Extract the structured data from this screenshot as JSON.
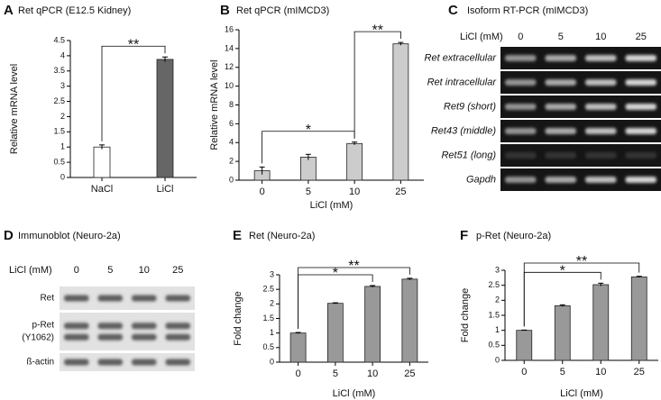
{
  "chart_data": [
    {
      "type": "bar",
      "panel": "A",
      "title": "Ret qPCR (E12.5 Kidney)",
      "y_label": "Relative mRNA level",
      "categories": [
        "NaCl",
        "LiCl"
      ],
      "values": [
        1.0,
        3.88
      ],
      "errors": [
        0.07,
        0.08
      ],
      "colors": [
        "#ffffff",
        "#666666"
      ],
      "ylim": [
        0,
        4.5
      ],
      "yticks": [
        0,
        0.5,
        1,
        1.5,
        2,
        2.5,
        3,
        3.5,
        4,
        4.5
      ],
      "annotations": [
        {
          "text": "**",
          "between": [
            "NaCl",
            "LiCl"
          ]
        }
      ]
    },
    {
      "type": "bar",
      "panel": "B",
      "title": "Ret qPCR (mIMCD3)",
      "y_label": "Relative mRNA level",
      "x_label": "LiCl (mM)",
      "categories": [
        "0",
        "5",
        "10",
        "25"
      ],
      "values": [
        1.0,
        2.45,
        3.9,
        14.5
      ],
      "errors": [
        0.4,
        0.3,
        0.15,
        0.15
      ],
      "color": "#cccccc",
      "ylim": [
        0,
        16
      ],
      "yticks": [
        0,
        2,
        4,
        6,
        8,
        10,
        12,
        14,
        16
      ],
      "annotations": [
        {
          "text": "*",
          "between": [
            "0",
            "10"
          ]
        },
        {
          "text": "**",
          "between": [
            "10",
            "25"
          ]
        }
      ]
    },
    {
      "type": "bar",
      "panel": "E",
      "title": "Ret (Neuro-2a)",
      "y_label": "Fold change",
      "x_label": "LiCl (mM)",
      "categories": [
        "0",
        "5",
        "10",
        "25"
      ],
      "values": [
        1.0,
        2.02,
        2.6,
        2.85
      ],
      "errors": [
        0.02,
        0.02,
        0.03,
        0.03
      ],
      "color": "#999999",
      "ylim": [
        0,
        3
      ],
      "yticks": [
        0,
        0.5,
        1,
        1.5,
        2,
        2.5,
        3
      ],
      "annotations": [
        {
          "text": "*",
          "between": [
            "0",
            "10"
          ]
        },
        {
          "text": "**",
          "between": [
            "0",
            "25"
          ]
        }
      ]
    },
    {
      "type": "bar",
      "panel": "F",
      "title": "p-Ret (Neuro-2a)",
      "y_label": "Fold change",
      "x_label": "LiCl (mM)",
      "categories": [
        "0",
        "5",
        "10",
        "25"
      ],
      "values": [
        1.0,
        1.82,
        2.52,
        2.78
      ],
      "errors": [
        0.01,
        0.03,
        0.05,
        0.02
      ],
      "color": "#999999",
      "ylim": [
        0,
        3
      ],
      "yticks": [
        0,
        0.5,
        1,
        1.5,
        2,
        2.5,
        3
      ],
      "annotations": [
        {
          "text": "*",
          "between": [
            "0",
            "10"
          ]
        },
        {
          "text": "**",
          "between": [
            "0",
            "25"
          ]
        }
      ]
    }
  ],
  "gels": [
    {
      "panel": "C",
      "title": "Isoform RT-PCR (mIMCD3)",
      "condition_label": "LiCl (mM)",
      "lanes": [
        "0",
        "5",
        "10",
        "25"
      ],
      "rows": [
        {
          "label": "Ret extracellular"
        },
        {
          "label": "Ret intracellular"
        },
        {
          "label": "Ret9 (short)"
        },
        {
          "label": "Ret43 (middle)"
        },
        {
          "label": "Ret51 (long)"
        },
        {
          "label": "Gapdh"
        }
      ]
    },
    {
      "panel": "D",
      "title": "Immunoblot (Neuro-2a)",
      "condition_label": "LiCl (mM)",
      "lanes": [
        "0",
        "5",
        "10",
        "25"
      ],
      "rows": [
        {
          "label": "Ret"
        },
        {
          "label": "p-Ret",
          "sublabel": "(Y1062)"
        },
        {
          "label": "ß-actin"
        }
      ]
    }
  ]
}
